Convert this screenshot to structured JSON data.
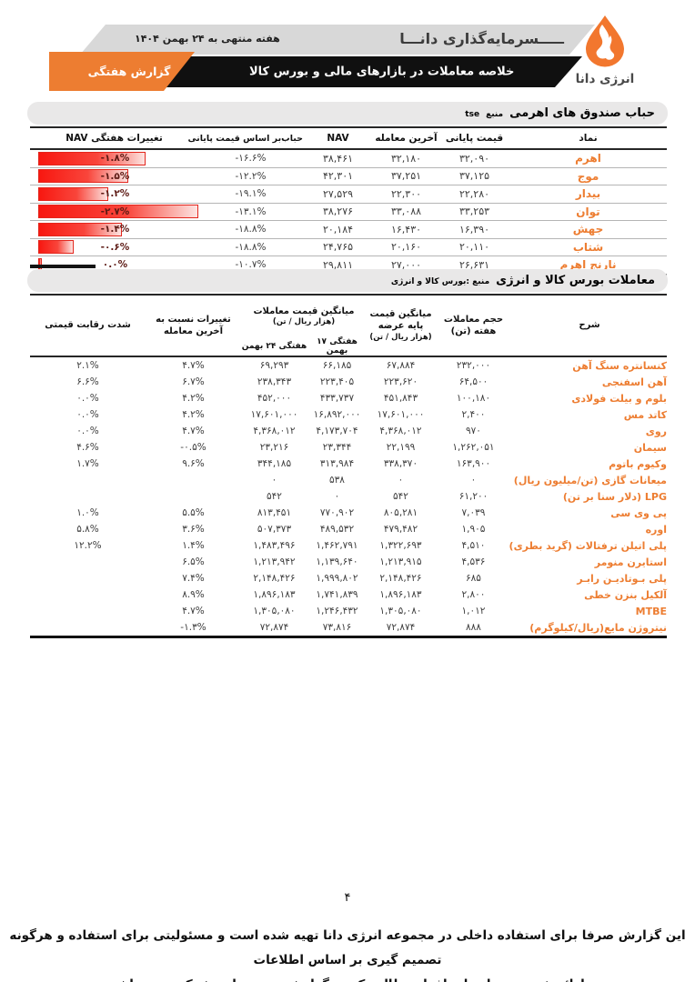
{
  "header": {
    "brand_name": "انرژی دانا",
    "company_wordmark": "ـــــسرمایه‌گذاری دانـــا",
    "week_label": "هفته منتهی به ۲۴ بهمن ۱۴۰۴",
    "report_type": "گزارش هفتگی",
    "report_title": "خلاصه معاملات در بازارهای مالی و بورس کالا"
  },
  "colors": {
    "accent_orange": "#ED7D31",
    "band_gray": "#d8d8d8",
    "band_black": "#101010",
    "positive_green": "#538135",
    "negative_red": "#C00000",
    "bar_red": "#f81710"
  },
  "leverage_table": {
    "title": "حباب صندوق های اهرمی",
    "source_label": "منبع",
    "source": "tse",
    "columns": {
      "symbol": "نماد",
      "closing_price": "قیمت پایانی",
      "last_trade": "آخرین معامله",
      "nav": "NAV",
      "bubble": "حباب‌بر اساس قیمت پایانی",
      "nav_weekly_change": "تغییرات هفتگی NAV"
    },
    "rows": [
      {
        "symbol": "اهرم",
        "closing_price": "۳۲,۰۹۰",
        "last_trade": "۳۲,۱۸۰",
        "nav": "۳۸,۴۶۱",
        "bubble": "-۱۶.۶%",
        "nav_weekly_change": "-۱.۸%",
        "bar_pct": 67
      },
      {
        "symbol": "موج",
        "closing_price": "۳۷,۱۲۵",
        "last_trade": "۳۷,۲۵۱",
        "nav": "۴۲,۳۰۱",
        "bubble": "-۱۲.۲%",
        "nav_weekly_change": "-۱.۵%",
        "bar_pct": 56
      },
      {
        "symbol": "بیدار",
        "closing_price": "۲۲,۲۸۰",
        "last_trade": "۲۲,۳۰۰",
        "nav": "۲۷,۵۲۹",
        "bubble": "-۱۹.۱%",
        "nav_weekly_change": "-۱.۲%",
        "bar_pct": 44
      },
      {
        "symbol": "توان",
        "closing_price": "۳۳,۲۵۳",
        "last_trade": "۳۳,۰۸۸",
        "nav": "۳۸,۲۷۶",
        "bubble": "-۱۳.۱%",
        "nav_weekly_change": "-۲.۷%",
        "bar_pct": 100
      },
      {
        "symbol": "جهش",
        "closing_price": "۱۶,۳۹۰",
        "last_trade": "۱۶,۴۳۰",
        "nav": "۲۰,۱۸۴",
        "bubble": "-۱۸.۸%",
        "nav_weekly_change": "-۱.۴%",
        "bar_pct": 52
      },
      {
        "symbol": "شتاب",
        "closing_price": "۲۰,۱۱۰",
        "last_trade": "۲۰,۱۶۰",
        "nav": "۲۴,۷۶۵",
        "bubble": "-۱۸.۸%",
        "nav_weekly_change": "-۰.۶%",
        "bar_pct": 22
      },
      {
        "symbol": "نارنج اهرم",
        "closing_price": "۲۶,۶۳۱",
        "last_trade": "۲۷,۰۰۰",
        "nav": "۲۹,۸۱۱",
        "bubble": "-۱۰.۷%",
        "nav_weekly_change": "۰.۰%",
        "bar_pct": 2
      }
    ]
  },
  "commodity_table": {
    "title": "معاملات بورس کالا و انرژی",
    "source_label": "منبع :بورس کالا و انرژی",
    "columns": {
      "desc": "شرح",
      "volume": "حجم معاملات هفته (تن)",
      "base_price": "میانگین قیمت پایه عرضه",
      "base_unit": "(هزار ریال / تن)",
      "avg_group": "میانگین قیمت معاملات",
      "avg_unit": "(هزار ریال / تن)",
      "week17": "هفتگی ۱۷ بهمن",
      "week24": "هفتگی ۲۴ بهمن",
      "change": "تغییرات نسبت به آخرین معامله",
      "intensity": "شدت رقابت قیمتی"
    },
    "rows": [
      {
        "name": "کنسانتره سنگ آهن",
        "volume": "۲۳۲,۰۰۰",
        "base_price": "۶۷,۸۸۴",
        "week17": "۶۶,۱۸۵",
        "week24": "۶۹,۲۹۳",
        "change": "۴.۷%",
        "intensity": "۲.۱%"
      },
      {
        "name": "آهن اسفنجی",
        "volume": "۶۴,۵۰۰",
        "base_price": "۲۲۳,۶۲۰",
        "week17": "۲۲۳,۴۰۵",
        "week24": "۲۳۸,۳۴۳",
        "change": "۶.۷%",
        "intensity": "۶.۶%"
      },
      {
        "name": "بلوم و بیلت فولادی",
        "volume": "۱۰۰,۱۸۰",
        "base_price": "۴۵۱,۸۴۳",
        "week17": "۴۳۳,۷۳۷",
        "week24": "۴۵۲,۰۰۰",
        "change": "۴.۲%",
        "intensity": "۰.۰%"
      },
      {
        "name": "کاتد مس",
        "volume": "۲,۴۰۰",
        "base_price": "۱۷,۶۰۱,۰۰۰",
        "week17": "۱۶,۸۹۲,۰۰۰",
        "week24": "۱۷,۶۰۱,۰۰۰",
        "change": "۴.۲%",
        "intensity": "۰.۰%"
      },
      {
        "name": "روی",
        "volume": "۹۷۰",
        "base_price": "۴,۳۶۸,۰۱۲",
        "week17": "۴,۱۷۳,۷۰۴",
        "week24": "۴,۳۶۸,۰۱۲",
        "change": "۴.۷%",
        "intensity": "۰.۰%"
      },
      {
        "name": "سیمان",
        "volume": "۱,۲۶۲,۰۵۱",
        "base_price": "۲۲,۱۹۹",
        "week17": "۲۳,۳۴۴",
        "week24": "۲۳,۲۱۶",
        "change": "-۰.۵%",
        "intensity": "۴.۶%"
      },
      {
        "name": "وکیوم باتوم",
        "volume": "۱۶۳,۹۰۰",
        "base_price": "۳۳۸,۳۷۰",
        "week17": "۳۱۳,۹۸۴",
        "week24": "۳۴۴,۱۸۵",
        "change": "۹.۶%",
        "intensity": "۱.۷%"
      },
      {
        "name": "میعانات گازی  (تن/میلیون ریال)",
        "volume": "۰",
        "base_price": "۰",
        "week17": "۵۳۸",
        "week24": "۰",
        "change": "",
        "intensity": ""
      },
      {
        "name": "LPG (دلار سنا بر تن)",
        "volume": "۶۱,۲۰۰",
        "base_price": "۵۴۲",
        "week17": "۰",
        "week24": "۵۴۲",
        "change": "",
        "intensity": ""
      },
      {
        "name": "پی وی سی",
        "volume": "۷,۰۳۹",
        "base_price": "۸۰۵,۲۸۱",
        "week17": "۷۷۰,۹۰۲",
        "week24": "۸۱۳,۴۵۱",
        "change": "۵.۵%",
        "intensity": "۱.۰%"
      },
      {
        "name": "اوره",
        "volume": "۱,۹۰۵",
        "base_price": "۴۷۹,۴۸۲",
        "week17": "۴۸۹,۵۳۲",
        "week24": "۵۰۷,۳۷۳",
        "change": "۳.۶%",
        "intensity": "۵.۸%"
      },
      {
        "name": "پلی اتیلن ترفتالات (گرید بطری)",
        "volume": "۴,۵۱۰",
        "base_price": "۱,۳۲۲,۶۹۳",
        "week17": "۱,۴۶۲,۷۹۱",
        "week24": "۱,۴۸۳,۴۹۶",
        "change": "۱.۴%",
        "intensity": "۱۲.۲%"
      },
      {
        "name": "استایرن منومر",
        "volume": "۴,۵۳۶",
        "base_price": "۱,۲۱۳,۹۱۵",
        "week17": "۱,۱۳۹,۶۴۰",
        "week24": "۱,۲۱۳,۹۴۲",
        "change": "۶.۵%",
        "intensity": ""
      },
      {
        "name": "پلی بـوتادیـن رابـر",
        "volume": "۶۸۵",
        "base_price": "۲,۱۴۸,۴۲۶",
        "week17": "۱,۹۹۹,۸۰۲",
        "week24": "۲,۱۴۸,۴۲۶",
        "change": "۷.۴%",
        "intensity": ""
      },
      {
        "name": "آلکیل بنزن خطی",
        "volume": "۲,۸۰۰",
        "base_price": "۱,۸۹۶,۱۸۳",
        "week17": "۱,۷۴۱,۸۳۹",
        "week24": "۱,۸۹۶,۱۸۳",
        "change": "۸.۹%",
        "intensity": ""
      },
      {
        "name": "MTBE",
        "volume": "۱,۰۱۲",
        "base_price": "۱,۳۰۵,۰۸۰",
        "week17": "۱,۲۴۶,۴۳۲",
        "week24": "۱,۳۰۵,۰۸۰",
        "change": "۴.۷%",
        "intensity": ""
      },
      {
        "name": "نیتروژن مایع(ریال/کیلوگرم)",
        "volume": "۸۸۸",
        "base_price": "۷۲,۸۷۴",
        "week17": "۷۳,۸۱۶",
        "week24": "۷۲,۸۷۴",
        "change": "-۱.۳%",
        "intensity": ""
      }
    ]
  },
  "page_number": "۴",
  "footer": {
    "line1": "این گزارش صرفا برای استفاده داخلی در مجموعه انرژی دانا تهیه شده است  و مسئولیتی برای استفاده و هرگونه تصمیم گیری بر اساس اطلاعات",
    "line2": "ارائه شده توسط سایر افراد مطالعه کننده گزارش، متوجه این شرکت نمی باشد"
  }
}
